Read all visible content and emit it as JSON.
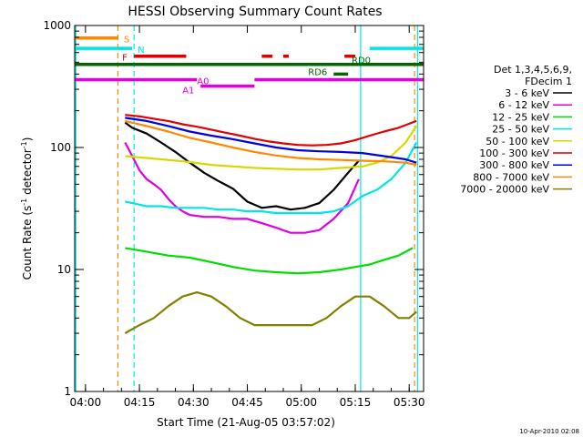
{
  "chart_data": {
    "type": "line",
    "title": "HESSI Observing Summary Count Rates",
    "xlabel": "Start Time (21-Aug-05 03:57:02)",
    "ylabel_prefix": "Count Rate (s",
    "ylabel_sup": "-1",
    "ylabel_mid": " detector",
    "ylabel_sup2": "-1",
    "ylabel_suffix": ")",
    "footer": "10-Apr-2010 02:08",
    "x_axis": {
      "unit": "minutes from 03:57:02",
      "range": [
        0,
        97
      ],
      "ticks": [
        {
          "label": "04:00",
          "value": 3
        },
        {
          "label": "04:15",
          "value": 18
        },
        {
          "label": "04:30",
          "value": 33
        },
        {
          "label": "04:45",
          "value": 48
        },
        {
          "label": "05:00",
          "value": 63
        },
        {
          "label": "05:15",
          "value": 78
        },
        {
          "label": "05:30",
          "value": 93
        }
      ]
    },
    "y_axis": {
      "scale": "log",
      "range": [
        1,
        1000
      ],
      "ticks": [
        {
          "label": "1",
          "value": 1
        },
        {
          "label": "10",
          "value": 10
        },
        {
          "label": "100",
          "value": 100
        },
        {
          "label": "1000",
          "value": 1000
        }
      ]
    },
    "legend": {
      "header1": "Det 1,3,4,5,6,9,",
      "header2": "FDecim 1",
      "placement": "right"
    },
    "series": [
      {
        "name": "3 - 6 keV",
        "color": "#000000",
        "x": [
          14,
          16,
          20,
          24,
          28,
          32,
          36,
          40,
          44,
          48,
          52,
          56,
          60,
          64,
          68,
          72,
          76,
          79
        ],
        "y": [
          160,
          145,
          130,
          110,
          92,
          75,
          62,
          53,
          46,
          36,
          32,
          33,
          31,
          32,
          35,
          45,
          62,
          78
        ]
      },
      {
        "name": "6 - 12 keV",
        "color": "#e000e0",
        "x": [
          14,
          16,
          18,
          20,
          22,
          24,
          26,
          28,
          30,
          32,
          36,
          40,
          44,
          48,
          52,
          56,
          60,
          64,
          68,
          72,
          76,
          79
        ],
        "y": [
          110,
          85,
          65,
          55,
          50,
          45,
          38,
          33,
          30,
          28,
          27,
          27,
          26,
          26,
          24,
          22,
          20,
          20,
          21,
          26,
          35,
          55
        ]
      },
      {
        "name": "12 - 25 keV",
        "color": "#00dd00",
        "x": [
          14,
          20,
          26,
          32,
          38,
          44,
          50,
          56,
          62,
          68,
          74,
          78,
          82,
          86,
          90,
          94
        ],
        "y": [
          15,
          14,
          13,
          12.5,
          11.5,
          10.5,
          9.8,
          9.5,
          9.3,
          9.5,
          10,
          10.5,
          11,
          12,
          13,
          15
        ]
      },
      {
        "name": "25 - 50 keV",
        "color": "#00e5e5",
        "x": [
          14,
          16,
          18,
          20,
          24,
          28,
          32,
          36,
          40,
          44,
          48,
          52,
          56,
          60,
          64,
          68,
          72,
          76,
          80,
          84,
          88,
          92,
          95
        ],
        "y": [
          36,
          35,
          34,
          33,
          33,
          32,
          32,
          32,
          31,
          31,
          30,
          30,
          29,
          29,
          29,
          29,
          30,
          33,
          40,
          45,
          55,
          75,
          110
        ]
      },
      {
        "name": "50 - 100 keV",
        "color": "#d8d800",
        "x": [
          14,
          20,
          26,
          32,
          38,
          44,
          50,
          56,
          62,
          68,
          74,
          80,
          84,
          88,
          92,
          95
        ],
        "y": [
          85,
          82,
          79,
          76,
          72,
          70,
          68,
          67,
          66,
          66,
          68,
          70,
          75,
          85,
          110,
          150
        ]
      },
      {
        "name": "100 - 300 keV",
        "color": "#e00000",
        "x": [
          14,
          18,
          22,
          26,
          30,
          34,
          38,
          42,
          46,
          50,
          54,
          58,
          62,
          66,
          70,
          74,
          78,
          82,
          86,
          90,
          95
        ],
        "y": [
          185,
          180,
          172,
          165,
          155,
          148,
          140,
          132,
          125,
          118,
          112,
          108,
          105,
          104,
          105,
          108,
          115,
          125,
          135,
          145,
          165
        ]
      },
      {
        "name": "300 - 800 keV",
        "color": "#0000e0",
        "x": [
          14,
          20,
          26,
          32,
          38,
          44,
          50,
          56,
          62,
          68,
          74,
          80,
          86,
          92,
          95
        ],
        "y": [
          175,
          165,
          150,
          135,
          125,
          117,
          108,
          100,
          95,
          93,
          92,
          90,
          85,
          80,
          75
        ]
      },
      {
        "name": "800 - 7000 keV",
        "color": "#ff8800",
        "x": [
          14,
          20,
          26,
          32,
          38,
          44,
          50,
          56,
          62,
          68,
          74,
          80,
          86,
          92,
          95
        ],
        "y": [
          165,
          150,
          135,
          120,
          110,
          100,
          92,
          86,
          82,
          80,
          79,
          78,
          77,
          75,
          72
        ]
      },
      {
        "name": "7000 - 20000 keV",
        "color": "#808000",
        "x": [
          14,
          18,
          22,
          26,
          30,
          34,
          38,
          42,
          46,
          50,
          54,
          58,
          62,
          66,
          70,
          74,
          78,
          82,
          86,
          90,
          93,
          95
        ],
        "y": [
          3,
          3.5,
          4,
          5,
          6,
          6.5,
          6,
          5,
          4,
          3.5,
          3.5,
          3.5,
          3.5,
          3.5,
          4,
          5,
          6,
          6,
          5,
          4,
          4,
          4.5
        ]
      }
    ],
    "flag_bars": [
      {
        "label": "S",
        "color": "#ff8800",
        "y": 790,
        "segments": [
          [
            0,
            12
          ]
        ]
      },
      {
        "label": "N",
        "color": "#00e5e5",
        "y": 650,
        "segments": [
          [
            0,
            16
          ],
          [
            82,
            97
          ]
        ]
      },
      {
        "label": "F",
        "color": "#e00000",
        "y": 560,
        "segments": [
          [
            16.5,
            31
          ],
          [
            52,
            55
          ],
          [
            58,
            59.5
          ],
          [
            75,
            78
          ]
        ]
      },
      {
        "label": "RD0",
        "color": "#006600",
        "y": 480,
        "segments": [
          [
            0,
            97
          ]
        ]
      },
      {
        "label": "RD6",
        "color": "#006600",
        "y": 400,
        "segments": [
          [
            72,
            76
          ]
        ]
      },
      {
        "label": "A0",
        "color": "#e000e0",
        "y": 360,
        "segments": [
          [
            0,
            34
          ],
          [
            50,
            97
          ]
        ]
      },
      {
        "label": "A1",
        "color": "#e000e0",
        "y": 318,
        "segments": [
          [
            35,
            50
          ]
        ]
      }
    ],
    "vlines": [
      {
        "color": "#ff8800",
        "x": 12,
        "dash": true
      },
      {
        "color": "#00e5e5",
        "x": 16.5,
        "dash": true
      },
      {
        "color": "#00e5e5",
        "x": 0.3,
        "dash": false
      },
      {
        "color": "#00e5e5",
        "x": 79.5,
        "dash": false
      },
      {
        "color": "#ff8800",
        "x": 94.5,
        "dash": true
      },
      {
        "color": "#00e5e5",
        "x": 95.3,
        "dash": false
      }
    ]
  }
}
